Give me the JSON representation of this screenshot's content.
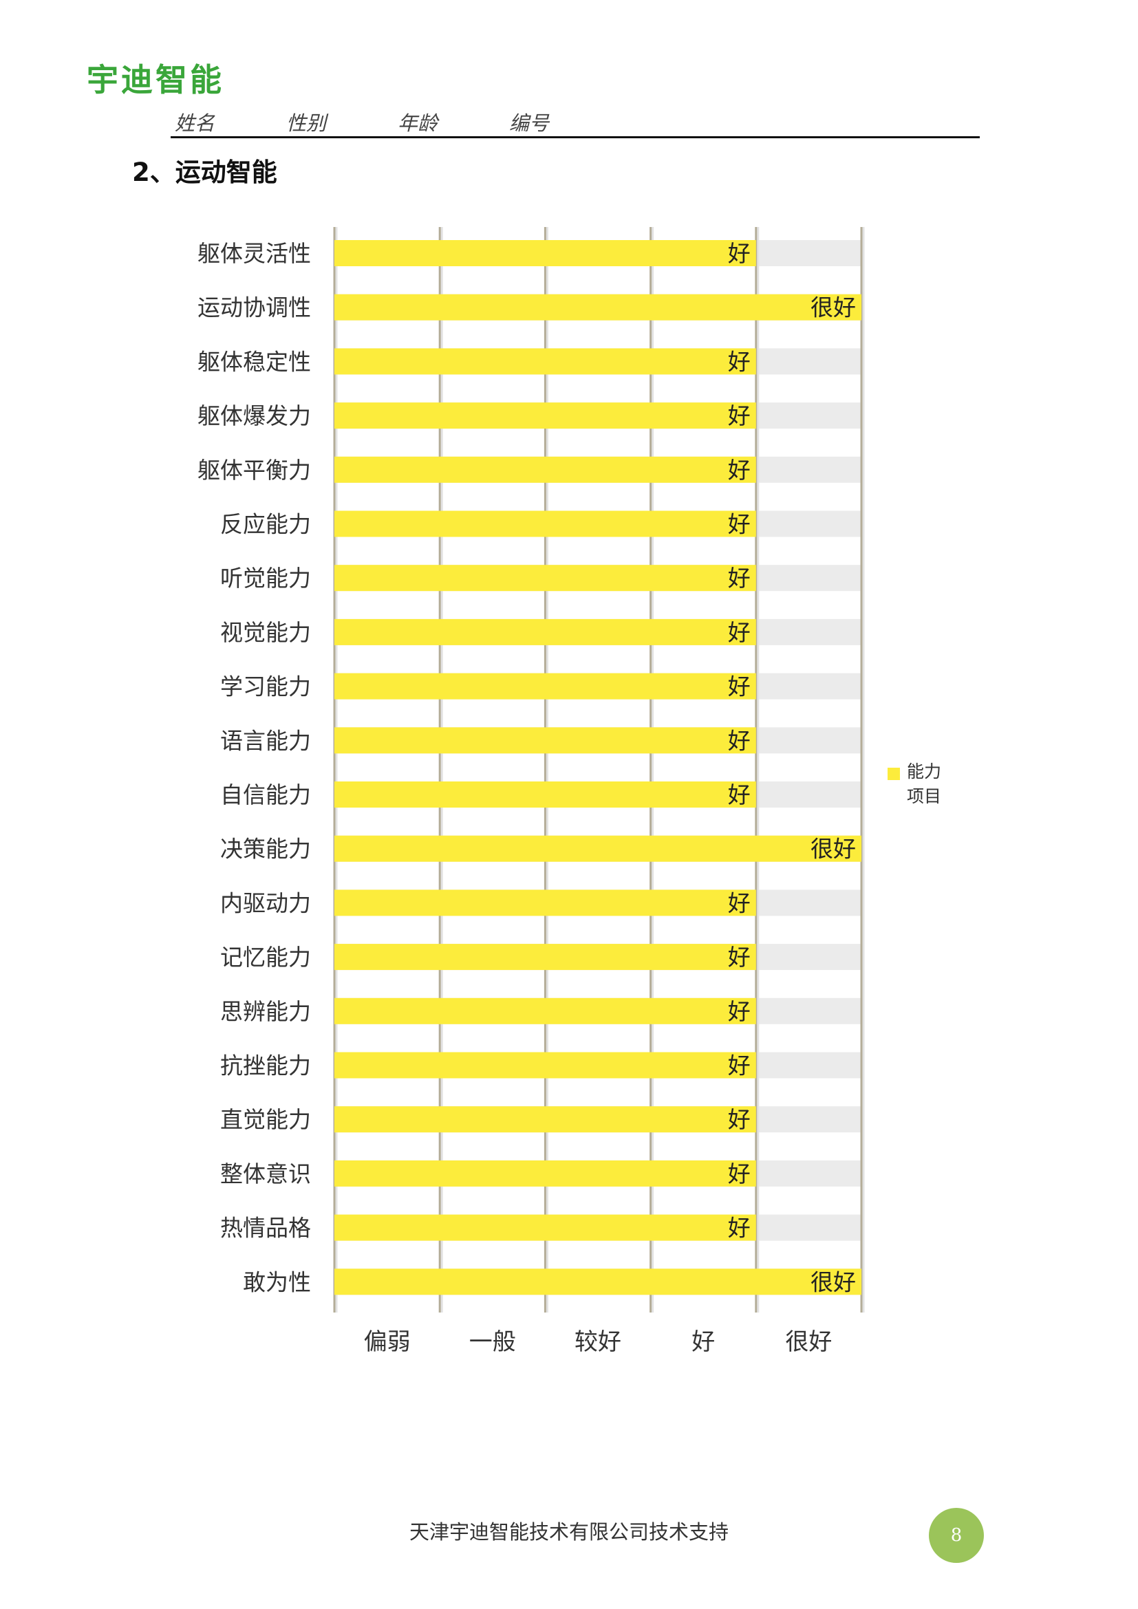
{
  "logo": "宇迪智能",
  "header": {
    "fields": [
      "姓名",
      "性别",
      "年龄",
      "编号"
    ]
  },
  "section_title": "2、运动智能",
  "colors": {
    "bar": "#fcec3c",
    "track": "#ebebeb",
    "grid": "#b4ad98",
    "logo": "#3aa63a",
    "page_badge": "#9bc45a"
  },
  "chart_data": {
    "type": "bar",
    "orientation": "horizontal",
    "level_labels": [
      "偏弱",
      "一般",
      "较好",
      "好",
      "很好"
    ],
    "xlim": [
      0,
      5
    ],
    "categories": [
      "躯体灵活性",
      "运动协调性",
      "躯体稳定性",
      "躯体爆发力",
      "躯体平衡力",
      "反应能力",
      "听觉能力",
      "视觉能力",
      "学习能力",
      "语言能力",
      "自信能力",
      "决策能力",
      "内驱动力",
      "记忆能力",
      "思辨能力",
      "抗挫能力",
      "直觉能力",
      "整体意识",
      "热情品格",
      "敢为性"
    ],
    "values": [
      4,
      5,
      4,
      4,
      4,
      4,
      4,
      4,
      4,
      4,
      4,
      5,
      4,
      4,
      4,
      4,
      4,
      4,
      4,
      5
    ],
    "data_labels": [
      "好",
      "很好",
      "好",
      "好",
      "好",
      "好",
      "好",
      "好",
      "好",
      "好",
      "好",
      "很好",
      "好",
      "好",
      "好",
      "好",
      "好",
      "好",
      "好",
      "很好"
    ],
    "legend": {
      "label": "能力项目",
      "position": "right"
    },
    "grid": true
  },
  "footer": {
    "text": "天津宇迪智能技术有限公司技术支持",
    "page": "8"
  }
}
